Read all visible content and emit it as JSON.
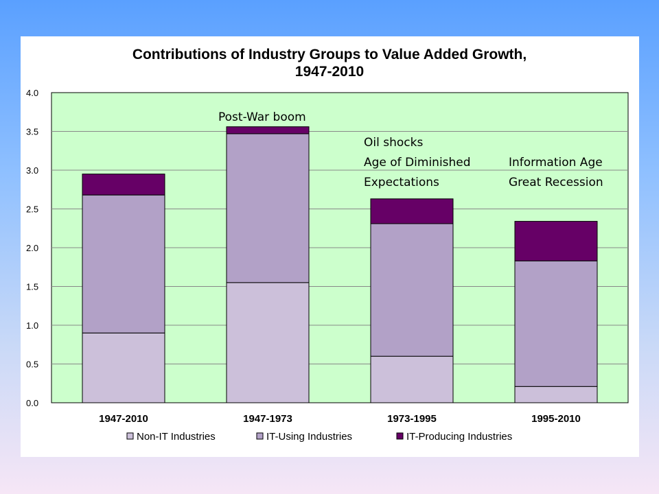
{
  "chart_data": {
    "type": "bar",
    "stacked": true,
    "title": "Contributions of Industry Groups to Value Added Growth,",
    "subtitle": "1947-2010",
    "categories": [
      "1947-2010",
      "1947-1973",
      "1973-1995",
      "1995-2010"
    ],
    "series": [
      {
        "name": "Non-IT Industries",
        "values": [
          0.9,
          1.55,
          0.6,
          0.21
        ],
        "color": "#ccc0da"
      },
      {
        "name": "IT-Using Industries",
        "values": [
          1.78,
          1.92,
          1.71,
          1.62
        ],
        "color": "#b2a1c7"
      },
      {
        "name": "IT-Producing Industries",
        "values": [
          0.27,
          0.09,
          0.32,
          0.51
        ],
        "color": "#660066"
      }
    ],
    "ylim": [
      0,
      4.0
    ],
    "yticks": [
      "4.0",
      "3.5",
      "3.0",
      "2.5",
      "2.0",
      "1.5",
      "1.0",
      "0.5",
      "0.0"
    ],
    "grid": true,
    "plot_background": "#ccffcc",
    "legend_position": "bottom",
    "annotations": [
      {
        "category": "1947-1973",
        "lines": [
          "Post-War boom"
        ]
      },
      {
        "category": "1973-1995",
        "lines": [
          "Oil shocks",
          "Age of Diminished",
          "Expectations"
        ]
      },
      {
        "category": "1995-2010",
        "lines": [
          "Information Age",
          "Great Recession"
        ]
      }
    ]
  }
}
